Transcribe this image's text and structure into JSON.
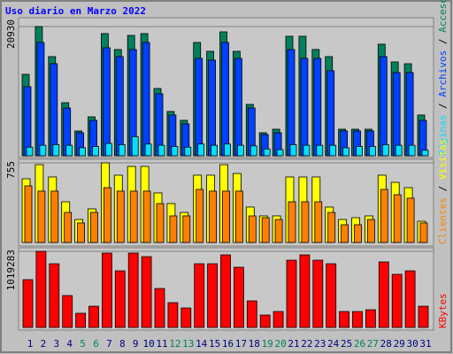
{
  "title": "Uso diario en Marzo 2022",
  "chart_data": [
    {
      "type": "bar",
      "legend_separator": "/",
      "ylim": [
        0,
        20930
      ],
      "yticks": [
        20930
      ],
      "series": [
        {
          "name": "Accesos",
          "color": "#00805c",
          "values": [
            13190,
            20930,
            16060,
            8600,
            4015,
            6310,
            19790,
            17210,
            19500,
            19790,
            10900,
            7170,
            5740,
            18350,
            16920,
            20070,
            16920,
            8320,
            3730,
            4300,
            19360,
            19360,
            17210,
            16060,
            4300,
            4300,
            4300,
            18070,
            15200,
            14910,
            6600
          ]
        },
        {
          "name": "Archivos",
          "color": "#0040ff",
          "values": [
            11190,
            18360,
            14910,
            7740,
            3730,
            5740,
            17490,
            16060,
            17210,
            18360,
            10040,
            6600,
            5160,
            15770,
            15490,
            18360,
            15770,
            7740,
            3440,
            3730,
            17210,
            15770,
            15770,
            13770,
            4020,
            4020,
            4020,
            16060,
            13480,
            13480,
            5740
          ]
        },
        {
          "name": "Páginas",
          "color": "#00e0ff",
          "values": [
            1400,
            1700,
            1800,
            1700,
            1300,
            1500,
            2000,
            1800,
            3100,
            1900,
            1700,
            1500,
            1400,
            1900,
            1700,
            1900,
            1700,
            1600,
            1100,
            1000,
            1800,
            1700,
            1700,
            1700,
            1300,
            1500,
            1500,
            1800,
            1700,
            1700,
            900
          ]
        }
      ]
    },
    {
      "type": "bar",
      "legend_separator": "/",
      "ylim": [
        0,
        755
      ],
      "yticks": [
        755
      ],
      "series": [
        {
          "name": "Visitas",
          "color": "#ffff00",
          "values": [
            604,
            738,
            621,
            386,
            218,
            319,
            755,
            638,
            721,
            721,
            470,
            369,
            285,
            638,
            638,
            738,
            654,
            336,
            252,
            252,
            621,
            621,
            621,
            336,
            218,
            235,
            252,
            638,
            570,
            520,
            201
          ]
        },
        {
          "name": "Clientes",
          "color": "#ff8000",
          "values": [
            537,
            487,
            487,
            285,
            185,
            285,
            520,
            487,
            487,
            487,
            369,
            252,
            252,
            503,
            487,
            487,
            487,
            252,
            235,
            218,
            386,
            386,
            386,
            285,
            168,
            168,
            218,
            503,
            453,
            420,
            185
          ]
        }
      ]
    },
    {
      "type": "bar",
      "ylim": [
        0,
        1019283
      ],
      "yticks": [
        1019283
      ],
      "categories": [
        "1",
        "2",
        "3",
        "4",
        "5",
        "6",
        "7",
        "8",
        "9",
        "10",
        "11",
        "12",
        "13",
        "14",
        "15",
        "16",
        "17",
        "18",
        "19",
        "20",
        "21",
        "22",
        "23",
        "24",
        "25",
        "26",
        "27",
        "28",
        "29",
        "30",
        "31"
      ],
      "x_label_colors": [
        "#000080",
        "#000080",
        "#000080",
        "#000080",
        "#00805c",
        "#00805c",
        "#000080",
        "#000080",
        "#000080",
        "#000080",
        "#000080",
        "#00805c",
        "#00805c",
        "#000080",
        "#000080",
        "#000080",
        "#000080",
        "#000080",
        "#00805c",
        "#00805c",
        "#000080",
        "#000080",
        "#000080",
        "#000080",
        "#000080",
        "#00805c",
        "#00805c",
        "#000080",
        "#000080",
        "#000080",
        "#000080"
      ],
      "series": [
        {
          "name": "KBytes",
          "color": "#ff0000",
          "values": [
            640000,
            1019283,
            853000,
            427000,
            190000,
            284000,
            995600,
            758500,
            995600,
            948000,
            521500,
            331900,
            260700,
            853000,
            853000,
            971900,
            806000,
            355600,
            166000,
            213300,
            900700,
            971900,
            900700,
            853000,
            213300,
            213300,
            237000,
            877000,
            711000,
            758500,
            284000
          ]
        }
      ]
    }
  ]
}
